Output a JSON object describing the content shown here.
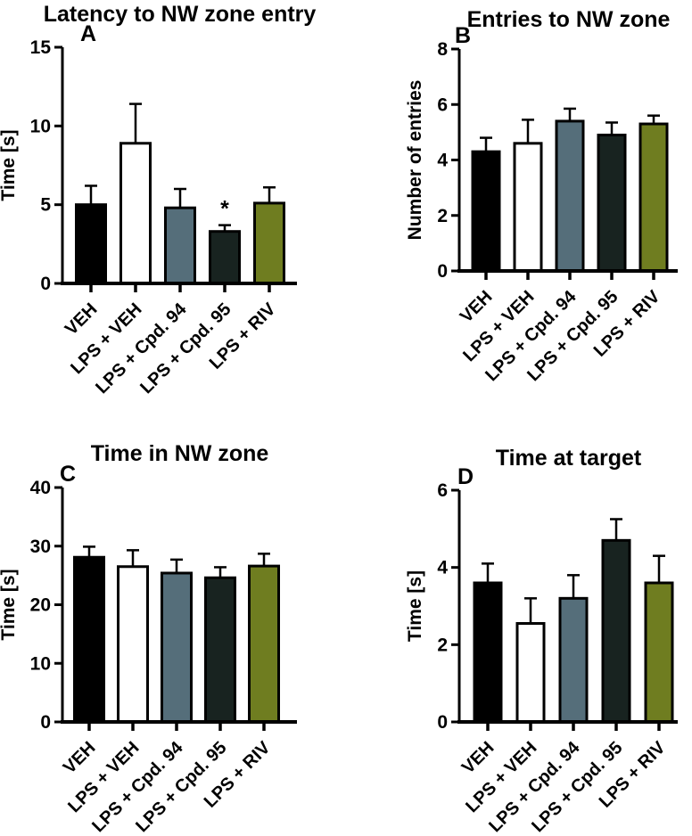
{
  "bar_colors": [
    "#000000",
    "#ffffff",
    "#556e7a",
    "#182320",
    "#6f7d20"
  ],
  "chart_data": [
    {
      "type": "bar",
      "panel_label": "A",
      "title": "Latency to NW zone entry",
      "xlabel": "",
      "ylabel": "Time [s]",
      "ylim": [
        0,
        15
      ],
      "yticks": [
        0,
        5,
        10,
        15
      ],
      "grid": false,
      "legend": "none",
      "categories": [
        "VEH",
        "LPS + VEH",
        "LPS + Cpd. 94",
        "LPS + Cpd. 95",
        "LPS + RIV"
      ],
      "values": [
        5.0,
        8.9,
        4.8,
        3.3,
        5.1
      ],
      "errors_upper": [
        1.2,
        2.5,
        1.2,
        0.4,
        1.0
      ],
      "significance": [
        {
          "bar_index": 3,
          "symbol": "*"
        }
      ]
    },
    {
      "type": "bar",
      "panel_label": "B",
      "title": "Entries to NW zone",
      "xlabel": "",
      "ylabel": "Number of entries",
      "ylim": [
        0,
        8
      ],
      "yticks": [
        0,
        2,
        4,
        6,
        8
      ],
      "grid": false,
      "legend": "none",
      "categories": [
        "VEH",
        "LPS + VEH",
        "LPS + Cpd. 94",
        "LPS + Cpd. 95",
        "LPS + RIV"
      ],
      "values": [
        4.3,
        4.6,
        5.4,
        4.9,
        5.3
      ],
      "errors_upper": [
        0.5,
        0.85,
        0.45,
        0.45,
        0.3
      ],
      "significance": []
    },
    {
      "type": "bar",
      "panel_label": "C",
      "title": "Time in NW zone",
      "xlabel": "",
      "ylabel": "Time [s]",
      "ylim": [
        0,
        40
      ],
      "yticks": [
        0,
        10,
        20,
        30,
        40
      ],
      "grid": false,
      "legend": "none",
      "categories": [
        "VEH",
        "LPS + VEH",
        "LPS + Cpd. 94",
        "LPS + Cpd. 95",
        "LPS + RIV"
      ],
      "values": [
        28.1,
        26.5,
        25.4,
        24.6,
        26.6
      ],
      "errors_upper": [
        1.8,
        2.8,
        2.3,
        1.8,
        2.1
      ],
      "significance": []
    },
    {
      "type": "bar",
      "panel_label": "D",
      "title": "Time at target",
      "xlabel": "",
      "ylabel": "Time [s]",
      "ylim": [
        0,
        6
      ],
      "yticks": [
        0,
        2,
        4,
        6
      ],
      "grid": false,
      "legend": "none",
      "categories": [
        "VEH",
        "LPS + VEH",
        "LPS + Cpd. 94",
        "LPS + Cpd. 95",
        "LPS + RIV"
      ],
      "values": [
        3.6,
        2.55,
        3.2,
        4.7,
        3.6
      ],
      "errors_upper": [
        0.5,
        0.65,
        0.6,
        0.55,
        0.7
      ],
      "significance": []
    }
  ]
}
